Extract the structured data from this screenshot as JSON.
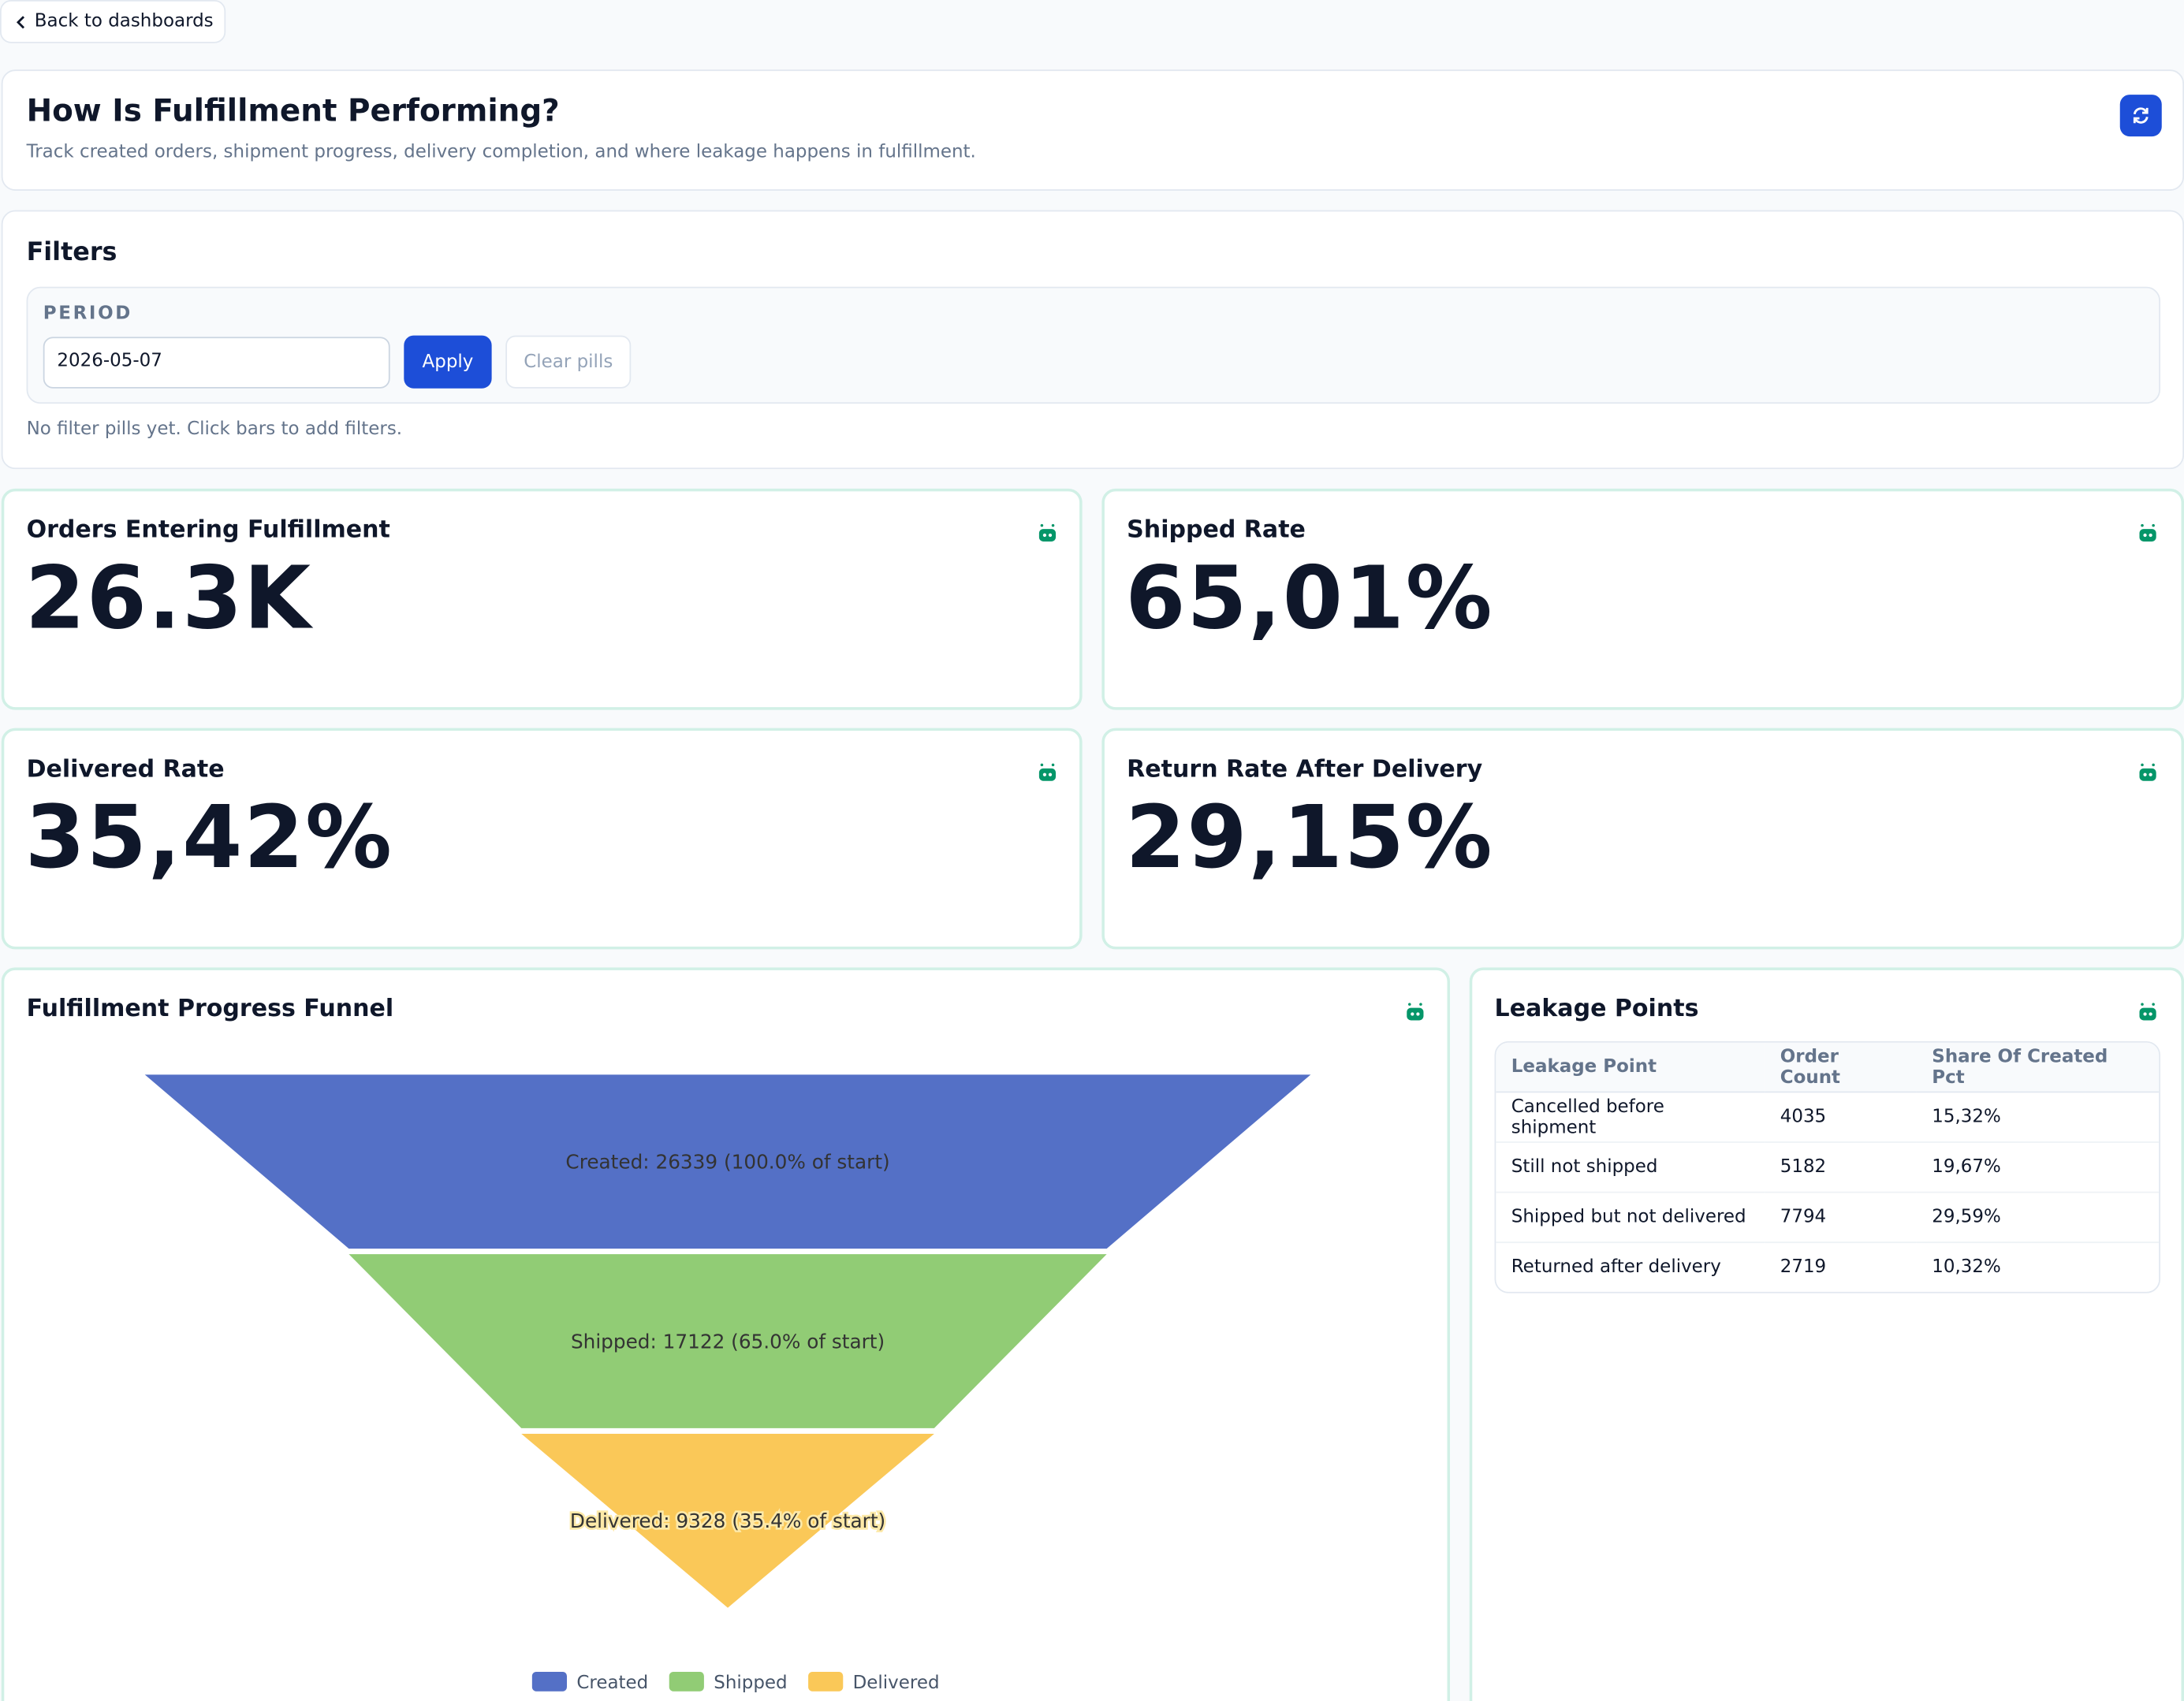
{
  "nav": {
    "back": "Back to dashboards"
  },
  "header": {
    "title": "How Is Fulfillment Performing?",
    "subtitle": "Track created orders, shipment progress, delivery completion, and where leakage happens in fulfillment."
  },
  "filters": {
    "title": "Filters",
    "period_label": "PERIOD",
    "period_value": "2026-05-07",
    "apply": "Apply",
    "clear": "Clear pills",
    "note": "No filter pills yet. Click bars to add filters."
  },
  "kpis": [
    {
      "title": "Orders Entering Fulfillment",
      "value": "26.3K"
    },
    {
      "title": "Shipped Rate",
      "value": "65,01%"
    },
    {
      "title": "Delivered Rate",
      "value": "35,42%"
    },
    {
      "title": "Return Rate After Delivery",
      "value": "29,15%"
    }
  ],
  "chart_data": {
    "type": "funnel",
    "title": "Fulfillment Progress Funnel",
    "categories": [
      "Created",
      "Shipped",
      "Delivered"
    ],
    "values": [
      26339,
      17122,
      9328
    ],
    "value_labels": [
      "Created: 26339 (100.0% of start)",
      "Shipped: 17122 (65.0% of start)",
      "Delivered: 9328 (35.4% of start)"
    ],
    "colors": [
      "#5470c6",
      "#91cc75",
      "#fac858"
    ]
  },
  "table": {
    "title": "Leakage Points",
    "columns": [
      "Leakage Point",
      "Order Count",
      "Share Of Created Pct"
    ],
    "rows": [
      [
        "Cancelled before shipment",
        4035,
        "15,32%"
      ],
      [
        "Still not shipped",
        5182,
        "19,67%"
      ],
      [
        "Shipped but not delivered",
        7794,
        "29,59%"
      ],
      [
        "Returned after delivery",
        2719,
        "10,32%"
      ]
    ]
  }
}
